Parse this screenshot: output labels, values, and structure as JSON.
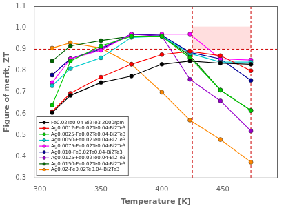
{
  "chart_data": {
    "type": "line",
    "xlabel": "Temperature [K]",
    "ylabel": "Figure of merit, ZT",
    "xlim": [
      295,
      495
    ],
    "ylim": [
      0.3,
      1.1
    ],
    "xticks": [
      300,
      350,
      400,
      450
    ],
    "yticks": [
      0.3,
      0.4,
      0.5,
      0.6,
      0.7,
      0.8,
      0.9,
      {
        "value": 1.0,
        "label": "1.0"
      },
      1.1
    ],
    "grid": false,
    "legend": "lower left",
    "marker": "circle",
    "hline": {
      "y": 0.9,
      "color": "#cc0000",
      "line_style": "dashed"
    },
    "vlines": {
      "x": [
        425,
        473
      ],
      "color": "#cc0000",
      "line_style": "dashed"
    },
    "shaded_region": {
      "x": [
        425,
        473
      ],
      "y": [
        0.9,
        1.005
      ],
      "color": "#ffb6b6"
    },
    "x": [
      310,
      325,
      350,
      375,
      400,
      423,
      448,
      473
    ],
    "series": [
      {
        "name": "Fe0.02Te0.04 Bi2Te3 2000rpm",
        "color": "#000000",
        "values": [
          0.605,
          0.685,
          0.745,
          0.775,
          0.83,
          0.845,
          0.835,
          0.83
        ]
      },
      {
        "name": "Ag0.0012-Fe0.02Te0.04-Bi2Te3",
        "color": "#ff0000",
        "values": [
          0.61,
          0.695,
          0.77,
          0.83,
          0.875,
          0.89,
          0.87,
          0.8
        ]
      },
      {
        "name": "Ag0.0025-Fe0.02Te0.04-Bi2Te3",
        "color": "#00cc00",
        "values": [
          0.64,
          0.845,
          0.915,
          0.96,
          0.96,
          0.86,
          0.71,
          0.615
        ]
      },
      {
        "name": "Ag0.0050-Fe0.02Te0.04-Bi2Te3",
        "color": "#00cccc",
        "values": [
          0.73,
          0.81,
          0.86,
          0.955,
          0.96,
          0.88,
          0.84,
          0.84
        ]
      },
      {
        "name": "Ag0.0075-Fe0.02Te0.04-Bi2Te3",
        "color": "#ff00ff",
        "values": [
          0.745,
          0.855,
          0.895,
          0.97,
          0.97,
          0.97,
          0.855,
          0.85
        ]
      },
      {
        "name": "Ag0.010-Fe0.02Te0.04-Bi2Te3",
        "color": "#000099",
        "values": [
          0.78,
          0.855,
          0.9,
          0.97,
          0.965,
          0.885,
          0.855,
          0.755
        ]
      },
      {
        "name": "Ag0.0125-Fe0.02Te0.04-Bi2Te3",
        "color": "#9900cc",
        "values": [
          0.78,
          0.855,
          0.905,
          0.97,
          0.96,
          0.76,
          0.66,
          0.52
        ]
      },
      {
        "name": "Ag0.0150-Fe0.02Te0.04-Bi2Te3",
        "color": "#006600",
        "values": [
          0.845,
          0.915,
          0.94,
          0.96,
          0.96,
          0.87,
          0.71,
          0.615
        ]
      },
      {
        "name": "Ag0.02-Fe0.02Te0.04-Bi2Te3",
        "color": "#ff8800",
        "values": [
          0.905,
          0.93,
          0.905,
          0.83,
          0.7,
          0.57,
          0.48,
          0.375
        ]
      }
    ]
  }
}
